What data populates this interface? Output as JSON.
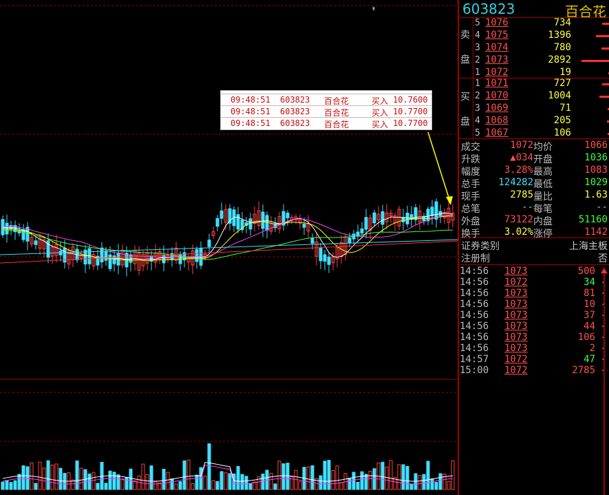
{
  "stock": {
    "code": "603823",
    "name": "百合花"
  },
  "sell_label": [
    "卖",
    "盘"
  ],
  "buy_label": [
    "买",
    "盘"
  ],
  "sell_levels": [
    {
      "n": "5",
      "price": "1076",
      "vol": "734",
      "bar": 0.2
    },
    {
      "n": "4",
      "price": "1075",
      "vol": "1396",
      "bar": 0.38
    },
    {
      "n": "3",
      "price": "1074",
      "vol": "780",
      "bar": 0.22
    },
    {
      "n": "2",
      "price": "1073",
      "vol": "2892",
      "bar": 0.8
    },
    {
      "n": "1",
      "price": "1072",
      "vol": "19",
      "bar": 0.02
    }
  ],
  "buy_levels": [
    {
      "n": "1",
      "price": "1071",
      "vol": "727",
      "bar": 0.2
    },
    {
      "n": "2",
      "price": "1070",
      "vol": "1004",
      "bar": 0.28
    },
    {
      "n": "3",
      "price": "1069",
      "vol": "71",
      "bar": 0.03
    },
    {
      "n": "4",
      "price": "1068",
      "vol": "205",
      "bar": 0.06
    },
    {
      "n": "5",
      "price": "1067",
      "vol": "106",
      "bar": 0.03
    }
  ],
  "quote": [
    {
      "l": "成交",
      "v": "1072",
      "vc": "#ff5050",
      "l2": "均价",
      "v2": "1066",
      "v2c": "#ff5050"
    },
    {
      "l": "升跌",
      "v": "▲034",
      "vc": "#ff5050",
      "l2": "开盘",
      "v2": "1036",
      "v2c": "#40ff40"
    },
    {
      "l": "幅度",
      "v": "3.28%",
      "vc": "#ff5050",
      "l2": "最高",
      "v2": "1083",
      "v2c": "#ff5050"
    },
    {
      "l": "总手",
      "v": "124282",
      "vc": "#40e0ff",
      "l2": "最低",
      "v2": "1029",
      "v2c": "#40ff40"
    },
    {
      "l": "现手",
      "v": "2785",
      "vc": "#ffff40",
      "l2": "量比",
      "v2": "1.63",
      "v2c": "#ffff40"
    },
    {
      "l": "总笔",
      "v": "--",
      "vc": "#bbb",
      "l2": "每笔",
      "v2": "--",
      "v2c": "#bbb"
    },
    {
      "l": "外盘",
      "v": "73122",
      "vc": "#ff5050",
      "l2": "内盘",
      "v2": "51160",
      "v2c": "#40ff40"
    },
    {
      "l": "换手",
      "v": "3.02%",
      "vc": "#ffff40",
      "l2": "涨停",
      "v2": "1142",
      "v2c": "#ff5050"
    }
  ],
  "info": [
    {
      "l": "证券类别",
      "r": "上海主板"
    },
    {
      "l": "注册制",
      "r": "否"
    }
  ],
  "ticks": [
    {
      "t": "14:56",
      "p": "1073",
      "v": "500",
      "c": "#ff5050",
      "f": "-"
    },
    {
      "t": "14:56",
      "p": "1072",
      "v": "34",
      "c": "#40ff40",
      "f": "-"
    },
    {
      "t": "14:56",
      "p": "1073",
      "v": "81",
      "c": "#ff5050",
      "f": "-"
    },
    {
      "t": "14:56",
      "p": "1073",
      "v": "10",
      "c": "#ff5050",
      "f": "-"
    },
    {
      "t": "14:56",
      "p": "1073",
      "v": "37",
      "c": "#ff5050",
      "f": "-"
    },
    {
      "t": "14:56",
      "p": "1073",
      "v": "44",
      "c": "#ff5050",
      "f": "-"
    },
    {
      "t": "14:56",
      "p": "1073",
      "v": "106",
      "c": "#ff5050",
      "f": "-"
    },
    {
      "t": "14:56",
      "p": "1073",
      "v": "2",
      "c": "#ff5050",
      "f": "-"
    },
    {
      "t": "14:57",
      "p": "1072",
      "v": "47",
      "c": "#40ff40",
      "f": "-"
    },
    {
      "t": "15:00",
      "p": "1072",
      "v": "2785",
      "c": "#ff5050",
      "f": "-"
    }
  ],
  "popup_rows": [
    {
      "time": "09:48:51",
      "code": "603823",
      "name": "百合花",
      "side": "买入",
      "price": "10.7600"
    },
    {
      "time": "09:48:51",
      "code": "603823",
      "name": "百合花",
      "side": "买入",
      "price": "10.7700"
    },
    {
      "time": "09:48:51",
      "code": "603823",
      "name": "百合花",
      "side": "买入",
      "price": "10.7700"
    }
  ],
  "colors": {
    "up": "#ff4040",
    "down": "#40e0ff",
    "grid": "#a00000",
    "ma5": "#ffffff",
    "ma10": "#ffff00",
    "ma20": "#ff40ff",
    "ma60": "#40ff40",
    "ma120": "#ff3030",
    "ma250": "#40e0ff"
  }
}
